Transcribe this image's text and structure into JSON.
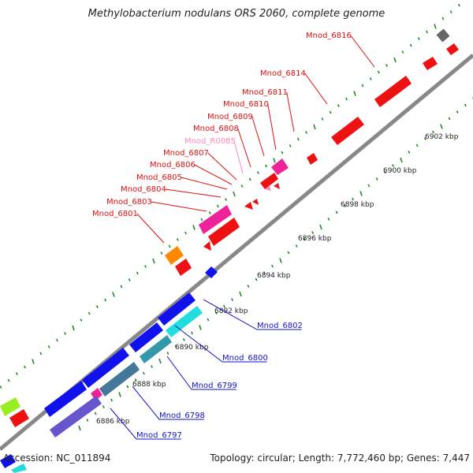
{
  "title": "Methylobacterium nodulans ORS 2060, complete genome",
  "footer": {
    "accession": "Accession: NC_011894",
    "summary": "Topology: circular; Length: 7,772,460 bp; Genes: 7,447"
  },
  "colors": {
    "forward_label": "#dd1111",
    "reverse_label": "#1111cc",
    "rna_label": "#ff88bb",
    "tick": "#228822",
    "backbone": "#888888"
  },
  "ticks": [
    {
      "label": "6886 kbp"
    },
    {
      "label": "6888 kbp"
    },
    {
      "label": "6890 kbp"
    },
    {
      "label": "6892 kbp"
    },
    {
      "label": "6894 kbp"
    },
    {
      "label": "6896 kbp"
    },
    {
      "label": "6898 kbp"
    },
    {
      "label": "6900 kbp"
    },
    {
      "label": "6902 kbp"
    }
  ],
  "forward_labels": [
    {
      "text": "Mnod_6816",
      "color": "red"
    },
    {
      "text": "Mnod_6814",
      "color": "red"
    },
    {
      "text": "Mnod_6811",
      "color": "red"
    },
    {
      "text": "Mnod_6810",
      "color": "red"
    },
    {
      "text": "Mnod_6809",
      "color": "red"
    },
    {
      "text": "Mnod_6808",
      "color": "red"
    },
    {
      "text": "Mnod_R0085",
      "color": "pink"
    },
    {
      "text": "Mnod_6807",
      "color": "red"
    },
    {
      "text": "Mnod_6806",
      "color": "red"
    },
    {
      "text": "Mnod_6805",
      "color": "red"
    },
    {
      "text": "Mnod_6804",
      "color": "red"
    },
    {
      "text": "Mnod_6803",
      "color": "red"
    },
    {
      "text": "Mnod_6801",
      "color": "red"
    }
  ],
  "reverse_labels": [
    {
      "text": "Mnod_6802"
    },
    {
      "text": "Mnod_6800"
    },
    {
      "text": "Mnod_6799"
    },
    {
      "text": "Mnod_6798"
    },
    {
      "text": "Mnod_6797"
    }
  ]
}
